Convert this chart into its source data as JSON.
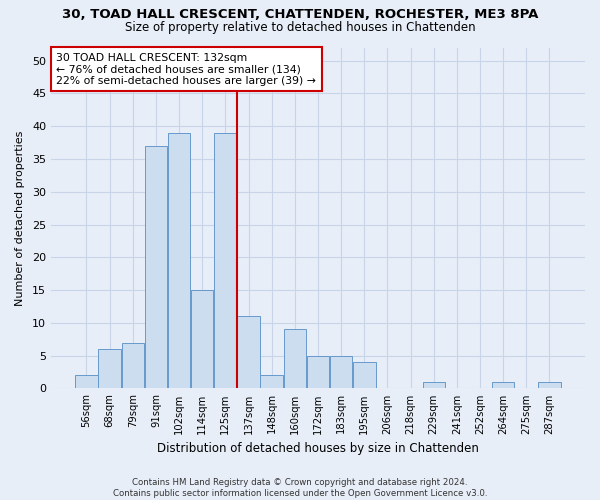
{
  "title1": "30, TOAD HALL CRESCENT, CHATTENDEN, ROCHESTER, ME3 8PA",
  "title2": "Size of property relative to detached houses in Chattenden",
  "xlabel": "Distribution of detached houses by size in Chattenden",
  "ylabel": "Number of detached properties",
  "bar_labels": [
    "56sqm",
    "68sqm",
    "79sqm",
    "91sqm",
    "102sqm",
    "114sqm",
    "125sqm",
    "137sqm",
    "148sqm",
    "160sqm",
    "172sqm",
    "183sqm",
    "195sqm",
    "206sqm",
    "218sqm",
    "229sqm",
    "241sqm",
    "252sqm",
    "264sqm",
    "275sqm",
    "287sqm"
  ],
  "bar_values": [
    2,
    6,
    7,
    37,
    39,
    15,
    39,
    11,
    2,
    9,
    5,
    5,
    4,
    0,
    0,
    1,
    0,
    0,
    1,
    0,
    1
  ],
  "bar_color": "#ccddf0",
  "bar_edge_color": "#6699cc",
  "property_line_label": "30 TOAD HALL CRESCENT: 132sqm",
  "annotation_line1": "← 76% of detached houses are smaller (134)",
  "annotation_line2": "22% of semi-detached houses are larger (39) →",
  "annotation_box_color": "#ffffff",
  "annotation_box_edge": "#cc0000",
  "vline_color": "#cc0000",
  "ylim": [
    0,
    52
  ],
  "yticks": [
    0,
    5,
    10,
    15,
    20,
    25,
    30,
    35,
    40,
    45,
    50
  ],
  "grid_color": "#c8d4e8",
  "bg_color": "#e8eef8",
  "footer1": "Contains HM Land Registry data © Crown copyright and database right 2024.",
  "footer2": "Contains public sector information licensed under the Open Government Licence v3.0."
}
